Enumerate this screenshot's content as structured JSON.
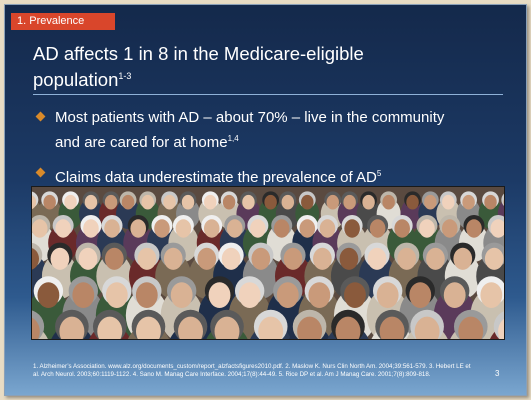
{
  "slide": {
    "section_tag": "1. Prevalence",
    "title_line1": "AD affects 1 in 8 in the Medicare-eligible",
    "title_line2": "population",
    "title_sup": "1-3",
    "bullets": [
      {
        "text_line1": "Most patients with AD – about 70% – live in the community",
        "text_line2": "and are cared for at home",
        "sup": "1,4"
      },
      {
        "text_line1": "Claims data underestimate the prevalence of AD",
        "text_line2": "",
        "sup": "5"
      }
    ],
    "references": "1. Alzheimer’s Association. www.alz.org/documents_custom/report_alzfactsfigures2010.pdf. 2. Maslow K. Nurs Clin North Am. 2004;39:561-579. 3. Hebert LE et al. Arch Neurol. 2003;60:1119-1122. 4. Sano M. Manag Care Interface. 2004;17(8):44-49. 5. Rice DP et al. Am J Manag Care. 2001;7(8):809-818.",
    "page_number": "3"
  },
  "colors": {
    "accent_tag": "#d9462b",
    "bullet_marker": "#d98a2a",
    "background_top": "#14294b",
    "background_bottom": "#7aa6cf"
  },
  "photo": {
    "subject": "crowd-of-elderly-people-photo"
  }
}
